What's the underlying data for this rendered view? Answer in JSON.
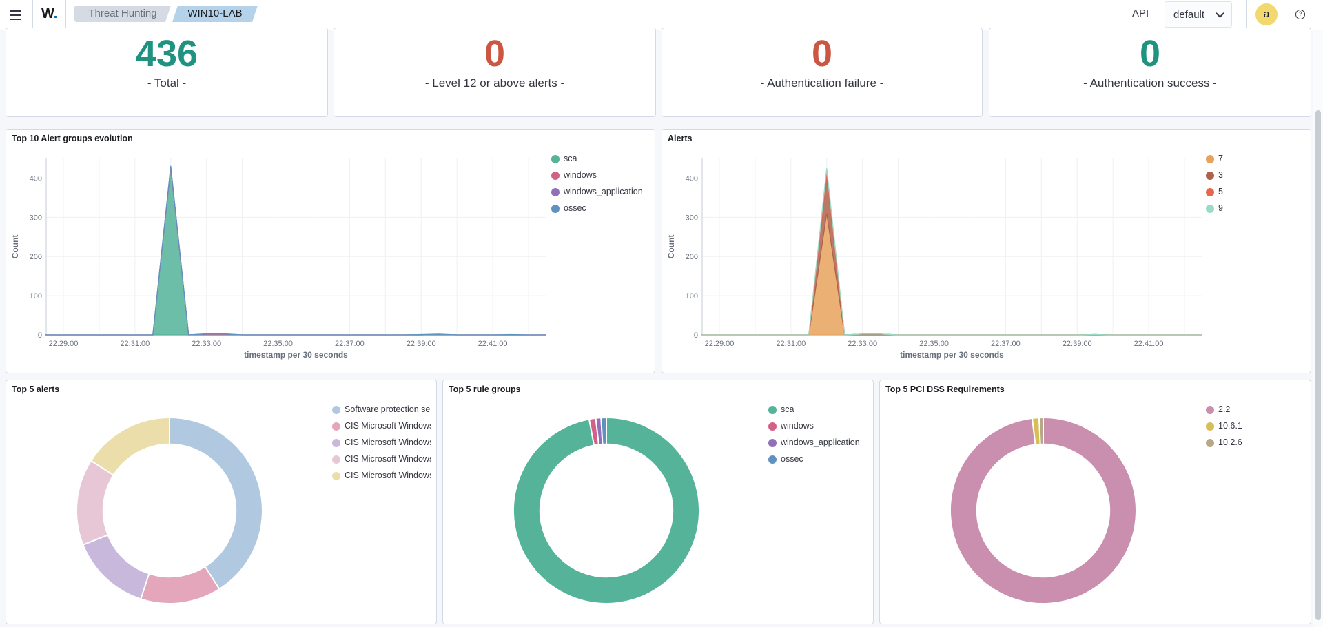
{
  "header": {
    "logo": "W",
    "breadcrumbs": [
      "Threat Hunting",
      "WIN10-LAB"
    ],
    "api_label": "API",
    "api_select_value": "default",
    "avatar_initial": "a",
    "help_glyph": "?"
  },
  "metrics": [
    {
      "value": "436",
      "label": "- Total -",
      "color": "#209280"
    },
    {
      "value": "0",
      "label": "- Level 12 or above alerts -",
      "color": "#cc5642"
    },
    {
      "value": "0",
      "label": "- Authentication failure -",
      "color": "#cc5642"
    },
    {
      "value": "0",
      "label": "- Authentication success -",
      "color": "#209280"
    }
  ],
  "charts": {
    "groups_title": "Top 10 Alert groups evolution",
    "alerts_title": "Alerts",
    "top5_alerts_title": "Top 5 alerts",
    "top5_rules_title": "Top 5 rule groups",
    "top5_pci_title": "Top 5 PCI DSS Requirements"
  },
  "chart_data": [
    {
      "type": "area",
      "title": "Top 10 Alert groups evolution",
      "xlabel": "timestamp per 30 seconds",
      "ylabel": "Count",
      "x_ticks": [
        "22:29:00",
        "22:31:00",
        "22:33:00",
        "22:35:00",
        "22:37:00",
        "22:39:00",
        "22:41:00"
      ],
      "y_ticks": [
        0,
        100,
        200,
        300,
        400
      ],
      "ylim": [
        0,
        450
      ],
      "x": [
        "22:28:30",
        "22:29:00",
        "22:29:30",
        "22:30:00",
        "22:30:30",
        "22:31:00",
        "22:31:30",
        "22:32:00",
        "22:32:30",
        "22:33:00",
        "22:33:30",
        "22:34:00",
        "22:34:30",
        "22:35:00",
        "22:35:30",
        "22:36:00",
        "22:36:30",
        "22:37:00",
        "22:37:30",
        "22:38:00",
        "22:38:30",
        "22:39:00",
        "22:39:30",
        "22:40:00",
        "22:40:30",
        "22:41:00",
        "22:41:30",
        "22:42:00",
        "22:42:30"
      ],
      "series": [
        {
          "name": "sca",
          "color": "#54b399",
          "values": [
            0,
            0,
            0,
            0,
            0,
            0,
            0,
            425,
            0,
            0,
            0,
            0,
            0,
            0,
            0,
            0,
            0,
            0,
            0,
            0,
            0,
            0,
            0,
            0,
            0,
            0,
            0,
            0,
            0
          ]
        },
        {
          "name": "windows",
          "color": "#d36086",
          "values": [
            0,
            0,
            0,
            0,
            0,
            0,
            0,
            3,
            0,
            2,
            2,
            0,
            0,
            0,
            0,
            0,
            0,
            0,
            0,
            0,
            0,
            0,
            1,
            0,
            0,
            0,
            0,
            0,
            0
          ]
        },
        {
          "name": "windows_application",
          "color": "#9170b8",
          "values": [
            0,
            0,
            0,
            0,
            0,
            0,
            0,
            2,
            0,
            0,
            0,
            0,
            0,
            0,
            0,
            0,
            0,
            0,
            0,
            0,
            0,
            0,
            0,
            0,
            0,
            0,
            0,
            0,
            0
          ]
        },
        {
          "name": "ossec",
          "color": "#6092c0",
          "values": [
            0,
            0,
            0,
            0,
            0,
            0,
            0,
            1,
            0,
            1,
            1,
            0,
            0,
            0,
            0,
            0,
            0,
            0,
            0,
            0,
            0,
            1,
            1,
            0,
            0,
            0,
            1,
            0,
            0
          ]
        }
      ]
    },
    {
      "type": "area",
      "title": "Alerts",
      "xlabel": "timestamp per 30 seconds",
      "ylabel": "Count",
      "x_ticks": [
        "22:29:00",
        "22:31:00",
        "22:33:00",
        "22:35:00",
        "22:37:00",
        "22:39:00",
        "22:41:00"
      ],
      "y_ticks": [
        0,
        100,
        200,
        300,
        400
      ],
      "ylim": [
        0,
        450
      ],
      "x": [
        "22:28:30",
        "22:29:00",
        "22:29:30",
        "22:30:00",
        "22:30:30",
        "22:31:00",
        "22:31:30",
        "22:32:00",
        "22:32:30",
        "22:33:00",
        "22:33:30",
        "22:34:00",
        "22:34:30",
        "22:35:00",
        "22:35:30",
        "22:36:00",
        "22:36:30",
        "22:37:00",
        "22:37:30",
        "22:38:00",
        "22:38:30",
        "22:39:00",
        "22:39:30",
        "22:40:00",
        "22:40:30",
        "22:41:00",
        "22:41:30",
        "22:42:00",
        "22:42:30"
      ],
      "series": [
        {
          "name": "7",
          "color": "#e7a35c",
          "values": [
            0,
            0,
            0,
            0,
            0,
            0,
            0,
            310,
            0,
            0,
            0,
            0,
            0,
            0,
            0,
            0,
            0,
            0,
            0,
            0,
            0,
            0,
            0,
            0,
            0,
            0,
            0,
            0,
            0
          ]
        },
        {
          "name": "3",
          "color": "#b0614d",
          "values": [
            0,
            0,
            0,
            0,
            0,
            0,
            0,
            100,
            0,
            2,
            2,
            0,
            0,
            0,
            0,
            0,
            0,
            0,
            0,
            0,
            0,
            0,
            1,
            0,
            0,
            0,
            0,
            0,
            0
          ]
        },
        {
          "name": "5",
          "color": "#e7664c",
          "values": [
            0,
            0,
            0,
            0,
            0,
            0,
            0,
            12,
            0,
            0,
            0,
            0,
            0,
            0,
            0,
            0,
            0,
            0,
            0,
            0,
            0,
            0,
            0,
            0,
            0,
            0,
            0,
            0,
            0
          ]
        },
        {
          "name": "9",
          "color": "#9adbc5",
          "values": [
            0,
            0,
            0,
            0,
            0,
            0,
            0,
            3,
            0,
            0,
            0,
            0,
            0,
            0,
            0,
            0,
            0,
            0,
            0,
            0,
            0,
            0,
            0,
            0,
            0,
            0,
            0,
            0,
            0
          ]
        }
      ]
    },
    {
      "type": "pie",
      "title": "Top 5 alerts",
      "donut": true,
      "series": [
        {
          "name": "Software protection service scheduled successfully.",
          "color": "#b0c9e0",
          "value": 41
        },
        {
          "name": "CIS Microsoft Windows",
          "color": "#e4a6ba",
          "value": 14
        },
        {
          "name": "CIS Microsoft Windows",
          "color": "#c8b8dc",
          "value": 14
        },
        {
          "name": "CIS Microsoft Windows",
          "color": "#e7c7d6",
          "value": 15
        },
        {
          "name": "CIS Microsoft Windows",
          "color": "#ebdeaa",
          "value": 16
        }
      ]
    },
    {
      "type": "pie",
      "title": "Top 5 rule groups",
      "donut": true,
      "series": [
        {
          "name": "sca",
          "color": "#54b399",
          "value": 425
        },
        {
          "name": "windows",
          "color": "#d36086",
          "value": 5
        },
        {
          "name": "windows_application",
          "color": "#9170b8",
          "value": 4
        },
        {
          "name": "ossec",
          "color": "#6092c0",
          "value": 4
        }
      ]
    },
    {
      "type": "pie",
      "title": "Top 5 PCI DSS Requirements",
      "donut": true,
      "series": [
        {
          "name": "2.2",
          "color": "#ca8eae",
          "value": 415
        },
        {
          "name": "10.6.1",
          "color": "#d6bf57",
          "value": 5
        },
        {
          "name": "10.2.6",
          "color": "#b9a888",
          "value": 3
        }
      ]
    }
  ]
}
